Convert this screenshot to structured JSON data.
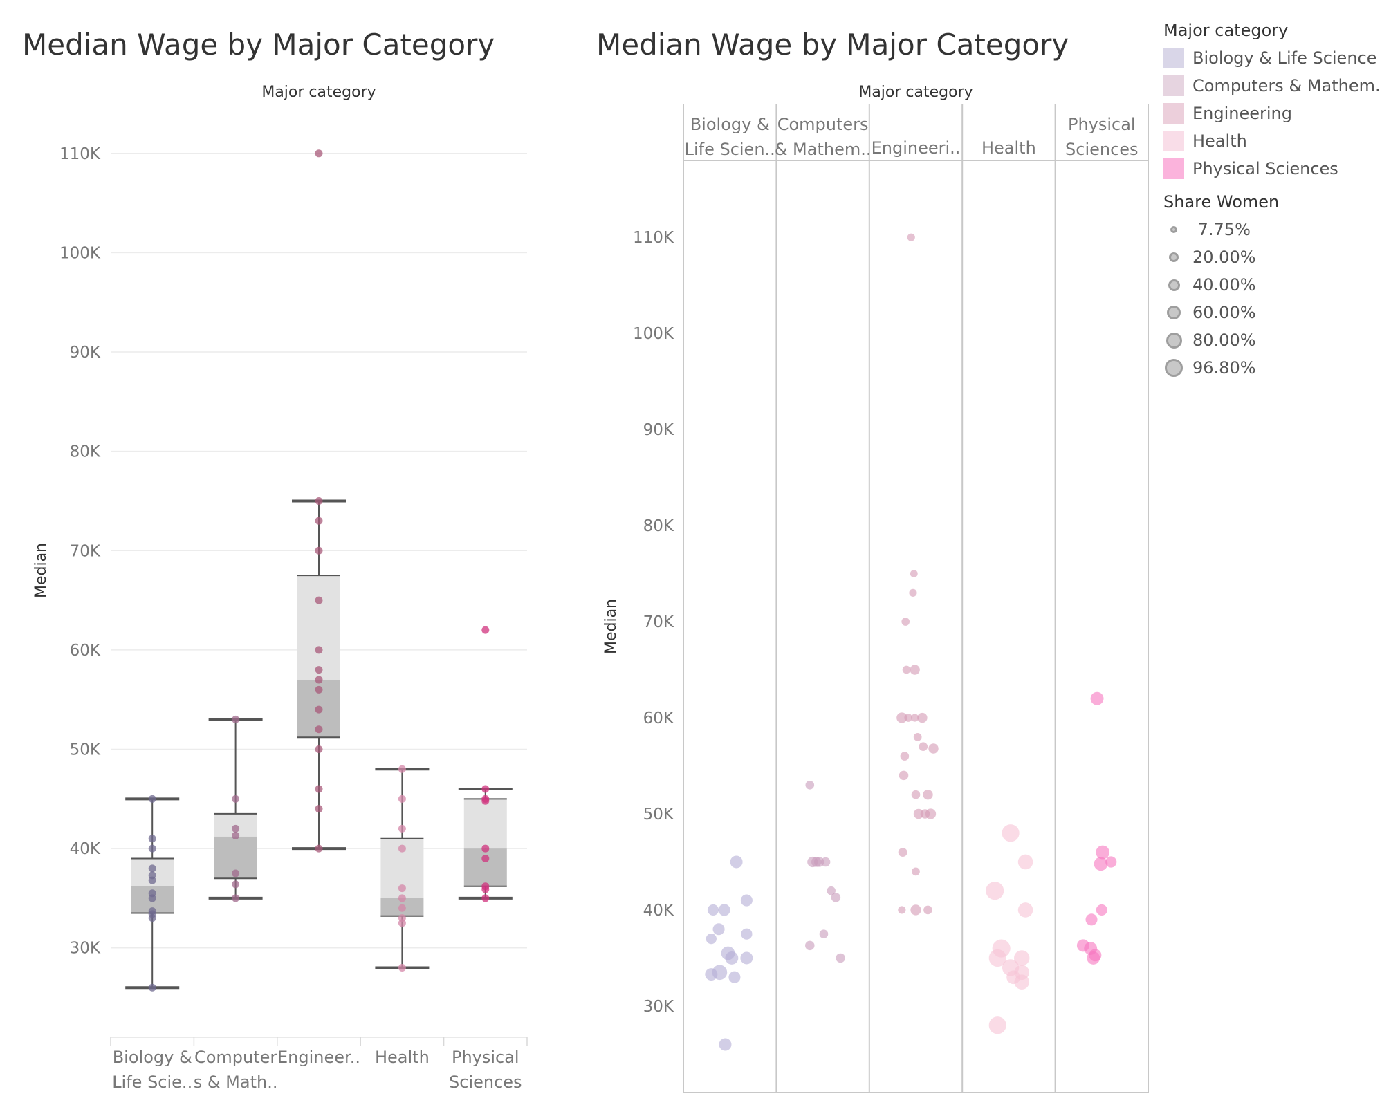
{
  "titles": {
    "left": "Median Wage by Major Category",
    "right": "Median Wage by Major Category"
  },
  "legend": {
    "color_title": "Major category",
    "color_items": [
      {
        "label": "Biology & Life Science",
        "color": "#d9d6e8"
      },
      {
        "label": "Computers & Mathem..",
        "color": "#e6d4e0"
      },
      {
        "label": "Engineering",
        "color": "#eccfdb"
      },
      {
        "label": "Health",
        "color": "#f9dde8"
      },
      {
        "label": "Physical Sciences",
        "color": "#fbb3dc"
      }
    ],
    "size_title": "Share Women",
    "size_items": [
      "7.75%",
      "20.00%",
      "40.00%",
      "60.00%",
      "80.00%",
      "96.80%"
    ]
  },
  "chart_data": [
    {
      "type": "box",
      "title": "Median Wage by Major Category",
      "xlabel": "Major category",
      "ylabel": "Median",
      "ylim": [
        21000,
        115000
      ],
      "yticks": [
        "30K",
        "40K",
        "50K",
        "60K",
        "70K",
        "80K",
        "90K",
        "100K",
        "110K"
      ],
      "categories": [
        {
          "label": [
            "Biology &",
            "Life Scie.."
          ],
          "color": "#6f6a8f",
          "whisker": [
            26000,
            45000
          ],
          "q1": 33500,
          "median": 36200,
          "q3": 39000,
          "points": [
            26000,
            33000,
            33400,
            33700,
            35000,
            35500,
            36800,
            37300,
            38000,
            40000,
            41000,
            45000
          ]
        },
        {
          "label": [
            "Computer",
            "s & Math.."
          ],
          "color": "#a06a8c",
          "whisker": [
            35000,
            53000
          ],
          "q1": 37000,
          "median": 41200,
          "q3": 43500,
          "points": [
            35000,
            36400,
            37500,
            41300,
            42000,
            45000,
            53000
          ]
        },
        {
          "label": [
            "Engineer.."
          ],
          "color": "#a85a7a",
          "whisker": [
            40000,
            75000
          ],
          "q1": 51200,
          "median": 57000,
          "q3": 67500,
          "points": [
            40000,
            44000,
            46000,
            50000,
            52000,
            54000,
            56000,
            57000,
            58000,
            60000,
            65000,
            70000,
            73000,
            75000,
            110000
          ]
        },
        {
          "label": [
            "Health"
          ],
          "color": "#d487a8",
          "whisker": [
            28000,
            48000
          ],
          "q1": 33200,
          "median": 35000,
          "q3": 41000,
          "points": [
            28000,
            32500,
            33000,
            34000,
            35000,
            36000,
            40000,
            42000,
            45000,
            48000
          ]
        },
        {
          "label": [
            "Physical",
            "Sciences"
          ],
          "color": "#d0337e",
          "whisker": [
            35000,
            46000
          ],
          "q1": 36200,
          "median": 40000,
          "q3": 45000,
          "points": [
            35000,
            35900,
            36200,
            39000,
            40000,
            44800,
            45000,
            46000,
            62000
          ]
        }
      ]
    },
    {
      "type": "scatter",
      "title": "Median Wage by Major Category",
      "xlabel": "Major category",
      "ylabel": "Median",
      "ylim": [
        21000,
        118000
      ],
      "yticks": [
        "30K",
        "40K",
        "50K",
        "60K",
        "70K",
        "80K",
        "90K",
        "100K",
        "110K"
      ],
      "categories": [
        {
          "label": [
            "Biology &",
            "Life Scien.."
          ],
          "color": "#b4aed5",
          "points": [
            [
              0.45,
              26000,
              0.5
            ],
            [
              0.3,
              33300,
              0.5
            ],
            [
              0.39,
              33500,
              0.7
            ],
            [
              0.55,
              33000,
              0.45
            ],
            [
              0.48,
              35500,
              0.6
            ],
            [
              0.52,
              35000,
              0.55
            ],
            [
              0.68,
              35000,
              0.5
            ],
            [
              0.3,
              37000,
              0.35
            ],
            [
              0.38,
              38000,
              0.45
            ],
            [
              0.68,
              37500,
              0.4
            ],
            [
              0.32,
              40000,
              0.4
            ],
            [
              0.44,
              40000,
              0.45
            ],
            [
              0.68,
              41000,
              0.45
            ],
            [
              0.57,
              45000,
              0.5
            ]
          ]
        },
        {
          "label": [
            "Computers",
            "& Mathem.."
          ],
          "color": "#c89bbb",
          "points": [
            [
              0.36,
              53000,
              0.2
            ],
            [
              0.36,
              36300,
              0.25
            ],
            [
              0.51,
              37500,
              0.2
            ],
            [
              0.69,
              35000,
              0.25
            ],
            [
              0.39,
              45000,
              0.35
            ],
            [
              0.46,
              45000,
              0.3
            ],
            [
              0.53,
              45000,
              0.25
            ],
            [
              0.59,
              42000,
              0.2
            ],
            [
              0.64,
              41300,
              0.25
            ],
            [
              0.43,
              45000,
              0.3
            ]
          ]
        },
        {
          "label": [
            "Engineeri.."
          ],
          "color": "#d49ab4",
          "points": [
            [
              0.45,
              110000,
              0.12
            ],
            [
              0.48,
              75000,
              0.1
            ],
            [
              0.47,
              73000,
              0.12
            ],
            [
              0.39,
              70000,
              0.15
            ],
            [
              0.4,
              65000,
              0.15
            ],
            [
              0.49,
              65000,
              0.3
            ],
            [
              0.35,
              60000,
              0.35
            ],
            [
              0.42,
              60000,
              0.15
            ],
            [
              0.49,
              60000,
              0.12
            ],
            [
              0.57,
              60000,
              0.3
            ],
            [
              0.52,
              58000,
              0.15
            ],
            [
              0.38,
              56000,
              0.2
            ],
            [
              0.58,
              57000,
              0.2
            ],
            [
              0.69,
              56800,
              0.3
            ],
            [
              0.37,
              54000,
              0.25
            ],
            [
              0.5,
              52000,
              0.2
            ],
            [
              0.63,
              52000,
              0.3
            ],
            [
              0.53,
              50000,
              0.3
            ],
            [
              0.6,
              50000,
              0.25
            ],
            [
              0.66,
              50000,
              0.35
            ],
            [
              0.36,
              46000,
              0.22
            ],
            [
              0.5,
              44000,
              0.15
            ],
            [
              0.35,
              40000,
              0.12
            ],
            [
              0.5,
              40000,
              0.35
            ],
            [
              0.63,
              40000,
              0.2
            ]
          ]
        },
        {
          "label": [
            "Health"
          ],
          "color": "#f7c3d5",
          "points": [
            [
              0.38,
              28000,
              0.9
            ],
            [
              0.52,
              48000,
              0.9
            ],
            [
              0.35,
              42000,
              0.95
            ],
            [
              0.68,
              45000,
              0.7
            ],
            [
              0.68,
              40000,
              0.7
            ],
            [
              0.42,
              36000,
              0.95
            ],
            [
              0.38,
              35000,
              0.9
            ],
            [
              0.52,
              34000,
              0.85
            ],
            [
              0.64,
              35000,
              0.75
            ],
            [
              0.64,
              33500,
              0.7
            ],
            [
              0.64,
              32500,
              0.7
            ],
            [
              0.55,
              33000,
              0.6
            ]
          ]
        },
        {
          "label": [
            "Physical",
            "Sciences"
          ],
          "color": "#f776c0",
          "points": [
            [
              0.45,
              62000,
              0.55
            ],
            [
              0.51,
              46000,
              0.6
            ],
            [
              0.49,
              44800,
              0.6
            ],
            [
              0.6,
              45000,
              0.4
            ],
            [
              0.5,
              40000,
              0.4
            ],
            [
              0.39,
              39000,
              0.45
            ],
            [
              0.3,
              36300,
              0.5
            ],
            [
              0.38,
              36000,
              0.55
            ],
            [
              0.41,
              35000,
              0.55
            ],
            [
              0.43,
              35300,
              0.5
            ]
          ]
        }
      ]
    }
  ]
}
